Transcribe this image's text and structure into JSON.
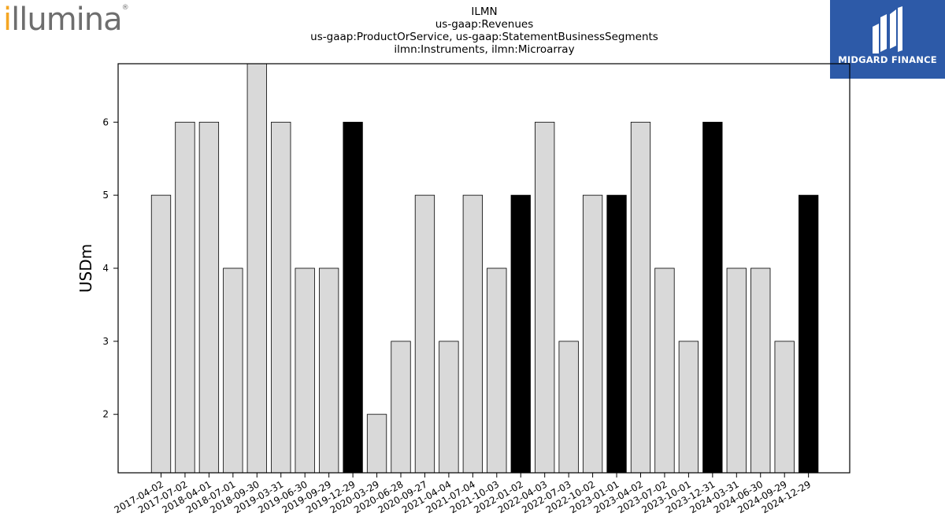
{
  "logo_left": {
    "text": "illumina",
    "registered": "®"
  },
  "logo_right": {
    "text": "MIDGARD FINANCE"
  },
  "header": {
    "lines": [
      "ILMN",
      "us-gaap:Revenues",
      "us-gaap:ProductOrService, us-gaap:StatementBusinessSegments",
      "ilmn:Instruments, ilmn:Microarray"
    ]
  },
  "chart_data": {
    "type": "bar",
    "ylabel": "USDm",
    "xlabel": "",
    "ylim": [
      1.2,
      6.8
    ],
    "yticks": [
      2,
      3,
      4,
      5,
      6
    ],
    "grid": false,
    "categories": [
      "2017-04-02",
      "2017-07-02",
      "2018-04-01",
      "2018-07-01",
      "2018-09-30",
      "2019-03-31",
      "2019-06-30",
      "2019-09-29",
      "2019-12-29",
      "2020-03-29",
      "2020-06-28",
      "2020-09-27",
      "2021-04-04",
      "2021-07-04",
      "2021-10-03",
      "2022-01-02",
      "2022-04-03",
      "2022-07-03",
      "2022-10-02",
      "2023-01-01",
      "2023-04-02",
      "2023-07-02",
      "2023-10-01",
      "2023-12-31",
      "2024-03-31",
      "2024-06-30",
      "2024-09-29",
      "2024-12-29"
    ],
    "values": [
      5,
      6,
      6,
      4,
      7,
      6,
      4,
      4,
      6,
      2,
      3,
      5,
      3,
      5,
      4,
      5,
      6,
      3,
      5,
      5,
      6,
      4,
      3,
      6,
      4,
      4,
      3,
      5
    ],
    "highlighted": [
      false,
      false,
      false,
      false,
      false,
      false,
      false,
      false,
      true,
      false,
      false,
      false,
      false,
      false,
      false,
      true,
      false,
      false,
      false,
      true,
      false,
      false,
      false,
      true,
      false,
      false,
      false,
      true
    ],
    "colors": {
      "bar": "#d9d9d9",
      "highlight": "#000000",
      "edge": "#000000"
    }
  }
}
